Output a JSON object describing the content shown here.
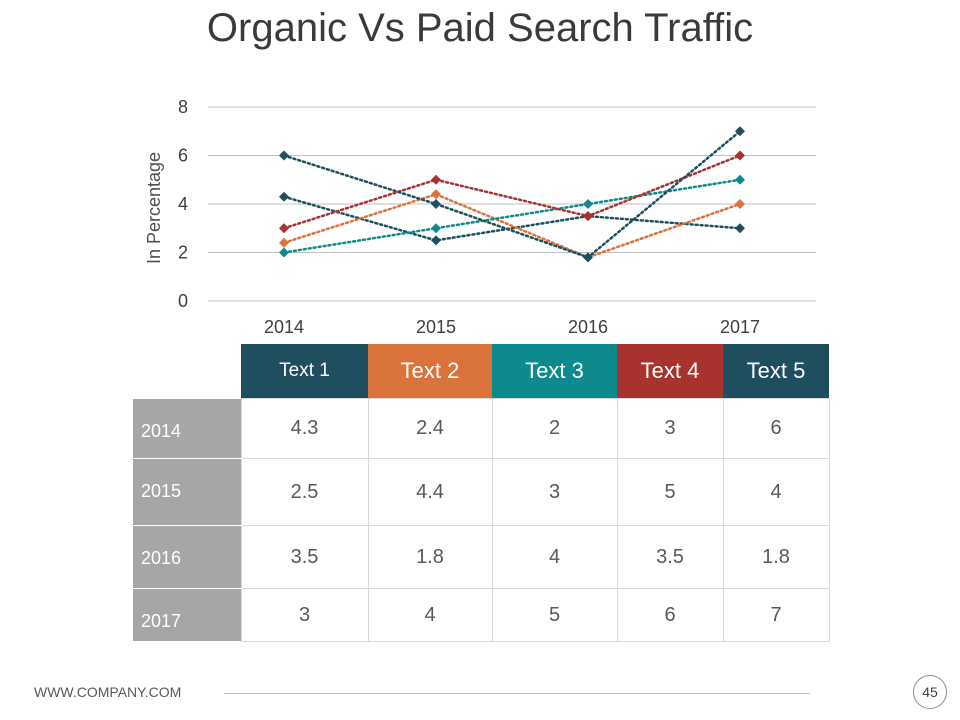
{
  "slide": {
    "title": "Organic Vs Paid Search Traffic",
    "footer_url": "WWW.COMPANY.COM",
    "page_number": "45"
  },
  "chart_data": {
    "type": "line",
    "title": "Organic Vs Paid Search Traffic",
    "ylabel": "In Percentage",
    "xlabel": "",
    "categories": [
      "2014",
      "2015",
      "2016",
      "2017"
    ],
    "ylim": [
      0,
      8
    ],
    "yticks": [
      0,
      2,
      4,
      6,
      8
    ],
    "grid": true,
    "line_style": "dotted",
    "marker": "diamond",
    "series": [
      {
        "name": "Text 1",
        "color": "#1f4e5f",
        "values": [
          4.3,
          2.5,
          3.5,
          3
        ]
      },
      {
        "name": "Text 2",
        "color": "#d9733b",
        "values": [
          2.4,
          4.4,
          1.8,
          4
        ]
      },
      {
        "name": "Text 3",
        "color": "#0e8a8f",
        "values": [
          2,
          3,
          4,
          5
        ]
      },
      {
        "name": "Text 4",
        "color": "#a8332e",
        "values": [
          3,
          5,
          3.5,
          6
        ]
      },
      {
        "name": "Text 5",
        "color": "#1f4e5f",
        "values": [
          6,
          4,
          1.8,
          7
        ]
      }
    ]
  }
}
